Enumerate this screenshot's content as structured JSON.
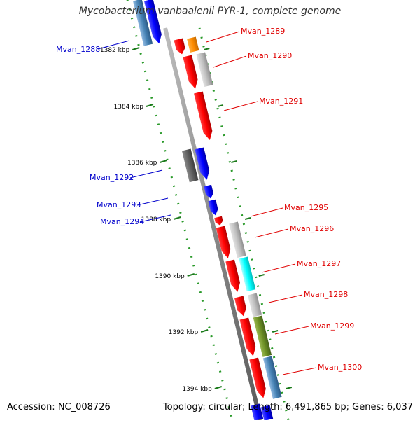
{
  "title": "Mycobacterium vanbaalenii PYR-1, complete genome",
  "footer": {
    "accession": "Accession: NC_008726",
    "summary": "Topology: circular; Length: 6,491,865 bp; Genes: 6,037"
  },
  "colors": {
    "forward_label": "#e00000",
    "reverse_label": "#0000cc",
    "backbone": "#8a8a8a",
    "tick": "#1a7a1a"
  },
  "ticks": [
    "1382 kbp",
    "1384 kbp",
    "1386 kbp",
    "1388 kbp",
    "1390 kbp",
    "1392 kbp",
    "1394 kbp"
  ],
  "gene_labels": [
    {
      "text": "Mvan_1288",
      "strand": "reverse"
    },
    {
      "text": "Mvan_1289",
      "strand": "forward"
    },
    {
      "text": "Mvan_1290",
      "strand": "forward"
    },
    {
      "text": "Mvan_1291",
      "strand": "forward"
    },
    {
      "text": "Mvan_1292",
      "strand": "reverse"
    },
    {
      "text": "Mvan_1293",
      "strand": "reverse"
    },
    {
      "text": "Mvan_1294",
      "strand": "reverse"
    },
    {
      "text": "Mvan_1295",
      "strand": "forward"
    },
    {
      "text": "Mvan_1296",
      "strand": "forward"
    },
    {
      "text": "Mvan_1297",
      "strand": "forward"
    },
    {
      "text": "Mvan_1298",
      "strand": "forward"
    },
    {
      "text": "Mvan_1299",
      "strand": "forward"
    },
    {
      "text": "Mvan_1300",
      "strand": "forward"
    }
  ]
}
